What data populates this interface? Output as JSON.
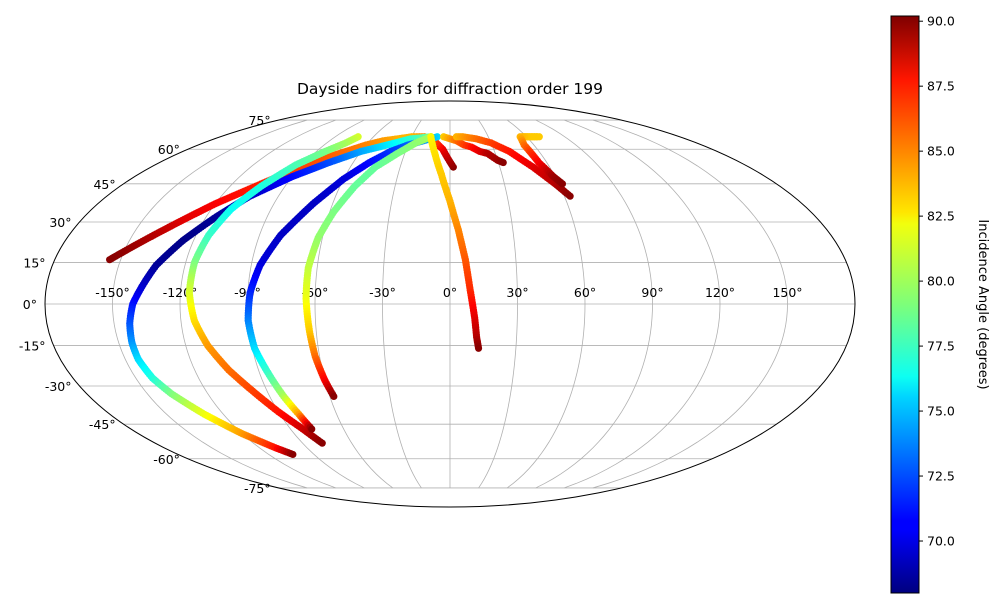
{
  "chart_data": {
    "type": "scatter",
    "projection": "mollweide",
    "title": "Dayside nadirs for diffraction order 199",
    "xlabel": "",
    "ylabel": "",
    "x_ticks": [
      -150,
      -120,
      -90,
      -60,
      -30,
      0,
      30,
      60,
      90,
      120,
      150
    ],
    "x_tick_labels": [
      "-150°",
      "-120°",
      "-90°",
      "-60°",
      "-30°",
      "0°",
      "30°",
      "60°",
      "90°",
      "120°",
      "150°"
    ],
    "y_ticks": [
      -75,
      -60,
      -45,
      -30,
      -15,
      0,
      15,
      30,
      45,
      60,
      75
    ],
    "y_tick_labels": [
      "-75°",
      "-60°",
      "-45°",
      "-30°",
      "-15°",
      "0°",
      "15°",
      "30°",
      "45°",
      "60°",
      "75°"
    ],
    "grid": true,
    "colormap": "jet",
    "colorbar": {
      "label": "Incidence Angle (degrees)",
      "range": [
        68.0,
        90.2
      ],
      "ticks": [
        70.0,
        72.5,
        75.0,
        77.5,
        80.0,
        82.5,
        85.0,
        87.5,
        90.0
      ],
      "tick_labels": [
        "70.0",
        "72.5",
        "75.0",
        "77.5",
        "80.0",
        "82.5",
        "85.0",
        "87.5",
        "90.0"
      ]
    },
    "tracks": [
      {
        "lon": [
          2,
          -5,
          -10,
          -15,
          -20,
          -30,
          -40,
          -50,
          -60,
          -70,
          -80,
          -90,
          -100,
          -110,
          -120,
          -130,
          -140,
          -150,
          -155
        ],
        "lat": [
          52,
          60,
          63,
          65,
          66,
          66,
          65,
          64,
          62,
          59,
          56,
          52,
          47,
          42,
          37,
          31,
          25,
          19,
          16
        ],
        "incidence": [
          90,
          88,
          86.5,
          85.5,
          84.5,
          83.5,
          83.5,
          84,
          84.5,
          85,
          85.5,
          86,
          86.5,
          87,
          87.5,
          88,
          89,
          89.8,
          90
        ]
      },
      {
        "lon": [
          -15,
          -30,
          -45,
          -60,
          -75,
          -90,
          -105,
          -115,
          -125,
          -133,
          -137,
          -141,
          -143,
          -144,
          -144,
          -142,
          -138,
          -130,
          -120,
          -110,
          -104
        ],
        "lat": [
          66,
          65,
          62,
          59,
          54,
          48,
          40,
          32,
          23,
          14,
          7,
          0,
          -7,
          -14,
          -20,
          -27,
          -33,
          -41,
          -49,
          -55,
          -58
        ],
        "incidence": [
          79,
          77.5,
          76,
          74.5,
          72.5,
          71,
          69.5,
          68.5,
          68.2,
          68.5,
          69.5,
          71,
          72.5,
          74,
          75.5,
          77,
          79,
          81.5,
          84,
          87,
          90
        ]
      },
      {
        "lon": [
          -72,
          -76,
          -84,
          -94,
          -103,
          -110,
          -114,
          -116,
          -116,
          -114,
          -110,
          -104,
          -97,
          -90,
          -83,
          -78
        ],
        "lat": [
          66,
          63,
          59,
          53,
          44,
          35,
          25,
          15,
          4,
          -6,
          -15,
          -24,
          -32,
          -40,
          -47,
          -53
        ],
        "incidence": [
          81,
          80,
          79,
          78,
          77,
          76.5,
          77.5,
          79,
          81,
          82.5,
          84,
          85,
          86,
          87,
          88.5,
          90
        ]
      },
      {
        "lon": [
          -10,
          -20,
          -30,
          -40,
          -50,
          -60,
          -70,
          -80,
          -86,
          -89,
          -90,
          -89,
          -86,
          -83,
          -80,
          -78
        ],
        "lat": [
          66,
          64,
          62,
          59,
          54,
          47,
          37,
          25,
          14,
          4,
          -6,
          -16,
          -25,
          -34,
          -41,
          -47
        ],
        "incidence": [
          75.5,
          74,
          73,
          72,
          71,
          70,
          69.5,
          69.5,
          70,
          71.5,
          73.5,
          75.5,
          77.5,
          80,
          84,
          90
        ]
      },
      {
        "lon": [
          -15,
          -25,
          -35,
          -45,
          -52,
          -58,
          -62,
          -64,
          -64,
          -63,
          -62,
          -60,
          -58
        ],
        "lat": [
          66,
          63,
          58,
          52,
          44,
          34,
          24,
          13,
          2,
          -10,
          -19,
          -28,
          -34
        ],
        "incidence": [
          80,
          79.5,
          79,
          78.5,
          78.5,
          79,
          79.5,
          80.5,
          81.5,
          83,
          85,
          87.5,
          90
        ]
      },
      {
        "lon": [
          -15,
          -10,
          -5,
          0,
          4,
          7,
          9,
          11,
          12,
          13
        ],
        "lat": [
          66,
          58,
          49,
          38,
          27,
          16,
          5,
          -5,
          -12,
          -16
        ],
        "incidence": [
          82,
          82.5,
          83,
          83.5,
          84.5,
          85.5,
          86.5,
          88,
          89,
          90
        ]
      },
      {
        "lon": [
          -5,
          0,
          5,
          10,
          15,
          20,
          25,
          30,
          33
        ],
        "lat": [
          66,
          65,
          64,
          62,
          61,
          59,
          58,
          55,
          54
        ],
        "incidence": [
          83,
          84,
          85,
          86,
          87,
          88,
          89,
          89.5,
          90
        ]
      },
      {
        "lon": [
          5,
          10,
          20,
          30,
          40,
          50,
          58,
          63
        ],
        "lat": [
          66,
          66,
          65,
          63,
          59,
          52,
          45,
          40
        ],
        "incidence": [
          83.5,
          84,
          85,
          86,
          87,
          88,
          89,
          90
        ]
      },
      {
        "lon": [
          57,
          70,
          68,
          62,
          55,
          53,
          54,
          55,
          57,
          59,
          62
        ],
        "lat": [
          66,
          66,
          66,
          66,
          66,
          62,
          58,
          54,
          51,
          48,
          45
        ],
        "incidence": [
          83.5,
          83,
          83,
          83,
          83.5,
          85,
          86.5,
          87.5,
          88.5,
          89.5,
          90
        ]
      }
    ]
  }
}
